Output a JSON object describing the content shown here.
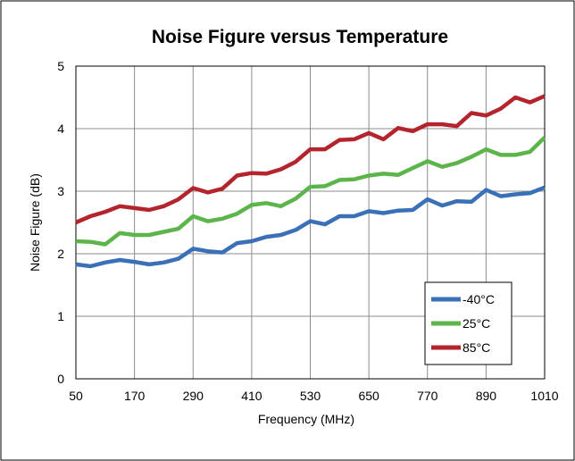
{
  "chart_data": {
    "type": "line",
    "title": "Noise Figure versus Temperature",
    "xlabel": "Frequency (MHz)",
    "ylabel": "Noise Figure (dB)",
    "xlim": [
      50,
      1010
    ],
    "ylim": [
      0,
      5
    ],
    "xticks": [
      50,
      170,
      290,
      410,
      530,
      650,
      770,
      890,
      1010
    ],
    "yticks": [
      0,
      1,
      2,
      3,
      4,
      5
    ],
    "grid": true,
    "legend_position": "bottom-right",
    "x": [
      50,
      80,
      110,
      140,
      170,
      200,
      230,
      260,
      290,
      320,
      350,
      380,
      410,
      440,
      470,
      500,
      530,
      560,
      590,
      620,
      650,
      680,
      710,
      740,
      770,
      800,
      830,
      860,
      890,
      920,
      950,
      980,
      1010
    ],
    "series": [
      {
        "name": "-40°C",
        "color": "#3a70b8",
        "values": [
          1.83,
          1.8,
          1.86,
          1.9,
          1.87,
          1.83,
          1.86,
          1.92,
          2.08,
          2.04,
          2.02,
          2.17,
          2.2,
          2.27,
          2.3,
          2.38,
          2.52,
          2.47,
          2.6,
          2.6,
          2.68,
          2.65,
          2.69,
          2.7,
          2.87,
          2.77,
          2.84,
          2.83,
          3.02,
          2.92,
          2.95,
          2.97,
          3.06
        ]
      },
      {
        "name": "25°C",
        "color": "#5cb54a",
        "values": [
          2.2,
          2.19,
          2.15,
          2.33,
          2.3,
          2.3,
          2.35,
          2.4,
          2.6,
          2.52,
          2.56,
          2.64,
          2.78,
          2.81,
          2.76,
          2.88,
          3.07,
          3.08,
          3.18,
          3.19,
          3.25,
          3.28,
          3.26,
          3.37,
          3.48,
          3.39,
          3.45,
          3.55,
          3.67,
          3.58,
          3.58,
          3.63,
          3.86
        ]
      },
      {
        "name": "85°C",
        "color": "#b3242c",
        "values": [
          2.5,
          2.6,
          2.67,
          2.76,
          2.73,
          2.7,
          2.76,
          2.87,
          3.05,
          2.98,
          3.04,
          3.25,
          3.29,
          3.28,
          3.35,
          3.47,
          3.67,
          3.67,
          3.82,
          3.83,
          3.93,
          3.83,
          4.01,
          3.96,
          4.07,
          4.07,
          4.04,
          4.25,
          4.21,
          4.32,
          4.5,
          4.42,
          4.52
        ]
      }
    ]
  }
}
